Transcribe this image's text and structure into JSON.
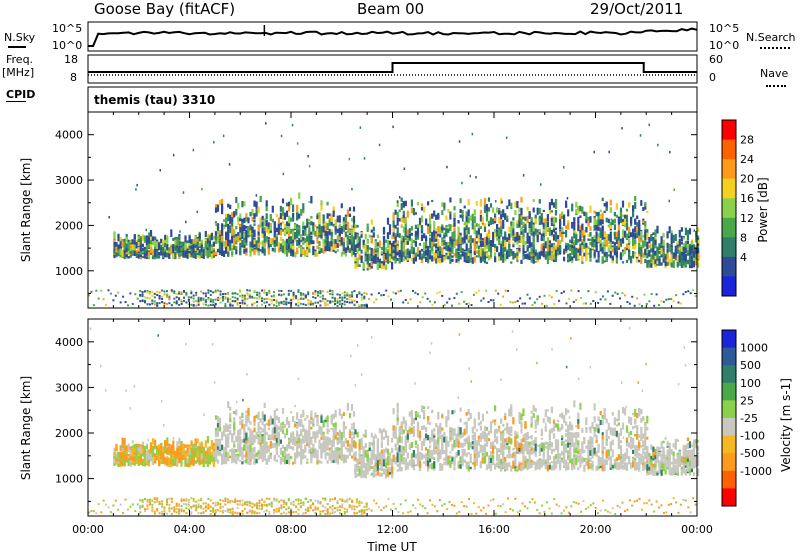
{
  "header": {
    "station": "Goose Bay (fitACF)",
    "beam": "Beam 00",
    "date": "29/Oct/2011"
  },
  "left_labels": {
    "nsky": "N.Sky",
    "freq": "Freq.",
    "freq_unit": "[MHz]",
    "cpid": "CPID"
  },
  "right_labels": {
    "nsearch": "N.Search",
    "nave": "Nave"
  },
  "top_axes": {
    "nsky_ticks": [
      "10^5",
      "10^0"
    ],
    "nsearch_ticks": [
      "10^5",
      "10^0"
    ],
    "freq_ticks": [
      "18",
      "8"
    ],
    "nave_ticks": [
      "60",
      "0"
    ]
  },
  "cpid_text": "themis (tau) 3310",
  "colorbars": {
    "power": {
      "label": "Power [dB]",
      "ticks": [
        "28",
        "24",
        "20",
        "16",
        "12",
        "8",
        "4"
      ],
      "colors": [
        "#ff0000",
        "#ff6000",
        "#ff9a1a",
        "#f5d020",
        "#8bd24c",
        "#4aa84a",
        "#2f7f6a",
        "#304a9a",
        "#1a24d8"
      ]
    },
    "velocity": {
      "label": "Velocity [m s-1]",
      "ticks": [
        "1000",
        "500",
        "100",
        "25",
        "-25",
        "-100",
        "-500",
        "-1000"
      ],
      "colors": [
        "#1a24d8",
        "#2f5a9a",
        "#2f7f6a",
        "#4aa84a",
        "#8bd24c",
        "#c8c8c0",
        "#f5b820",
        "#ff9a1a",
        "#ff6000",
        "#ff0000"
      ]
    }
  },
  "chart_data": [
    {
      "type": "heatmap",
      "title": "Power",
      "xlabel": "Time UT",
      "ylabel": "Slant Range [km]",
      "x_ticks": [
        "00:00",
        "04:00",
        "08:00",
        "12:00",
        "16:00",
        "20:00",
        "00:00"
      ],
      "y_ticks": [
        1000,
        2000,
        3000,
        4000
      ],
      "ylim": [
        180,
        4500
      ],
      "xlim_hours": [
        0,
        24
      ],
      "colorbar": "Power [dB]",
      "echo_bands": [
        {
          "t_start": 1.0,
          "t_end": 5.0,
          "r_low": 1250,
          "r_high": 1800
        },
        {
          "t_start": 5.0,
          "t_end": 10.5,
          "r_low": 1300,
          "r_high": 2600
        },
        {
          "t_start": 10.5,
          "t_end": 12.0,
          "r_low": 1000,
          "r_high": 2100
        },
        {
          "t_start": 12.0,
          "t_end": 22.0,
          "r_low": 1150,
          "r_high": 2600
        },
        {
          "t_start": 22.0,
          "t_end": 24.0,
          "r_low": 1050,
          "r_high": 1900
        }
      ]
    },
    {
      "type": "heatmap",
      "title": "Velocity",
      "xlabel": "Time UT",
      "ylabel": "Slant Range [km]",
      "x_ticks": [
        "00:00",
        "04:00",
        "08:00",
        "12:00",
        "16:00",
        "20:00",
        "00:00"
      ],
      "y_ticks": [
        1000,
        2000,
        3000,
        4000
      ],
      "ylim": [
        180,
        4500
      ],
      "xlim_hours": [
        0,
        24
      ],
      "colorbar": "Velocity [m s-1]",
      "echo_bands": [
        {
          "t_start": 1.0,
          "t_end": 5.0,
          "r_low": 1250,
          "r_high": 1800
        },
        {
          "t_start": 5.0,
          "t_end": 10.5,
          "r_low": 1300,
          "r_high": 2600
        },
        {
          "t_start": 10.5,
          "t_end": 12.0,
          "r_low": 1000,
          "r_high": 2100
        },
        {
          "t_start": 12.0,
          "t_end": 22.0,
          "r_low": 1150,
          "r_high": 2600
        },
        {
          "t_start": 22.0,
          "t_end": 24.0,
          "r_low": 1050,
          "r_high": 1900
        }
      ]
    }
  ]
}
